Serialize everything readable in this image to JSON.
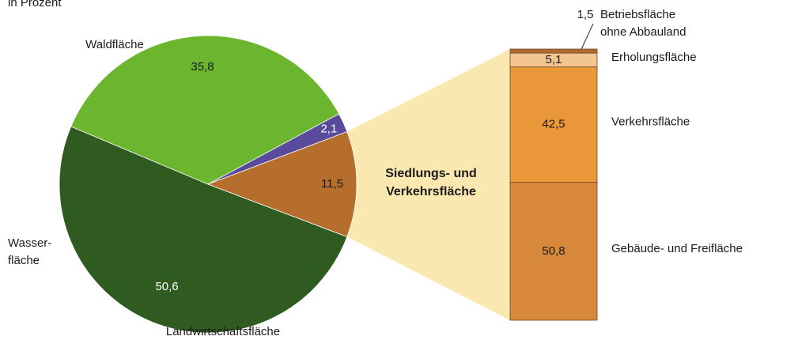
{
  "chart_data": {
    "type": "pie",
    "subtitle": "in Prozent",
    "categories": [
      "Waldfläche",
      "Landwirtschaftsfläche",
      "Wasser-\nfläche",
      "Siedlungs- und\nVerkehrsfläche"
    ],
    "values": [
      50.6,
      35.8,
      2.1,
      11.5
    ],
    "value_labels": [
      "50,6",
      "35,8",
      "2,1",
      "11,5"
    ],
    "colors": [
      "#2f5b20",
      "#6cb52e",
      "#5a4a9c",
      "#b56e2c"
    ],
    "breakdown": {
      "categories": [
        "Gebäude- und Freifläche",
        "Verkehrsfläche",
        "Erholungsfläche",
        "Betriebsfläche\nohne Abbauland"
      ],
      "values": [
        50.8,
        42.5,
        5.1,
        1.5
      ],
      "value_labels": [
        "50,8",
        "42,5",
        "5,1",
        "1,5"
      ],
      "colors": [
        "#d8883a",
        "#ea973a",
        "#f4c590",
        "#b06a30"
      ]
    }
  }
}
